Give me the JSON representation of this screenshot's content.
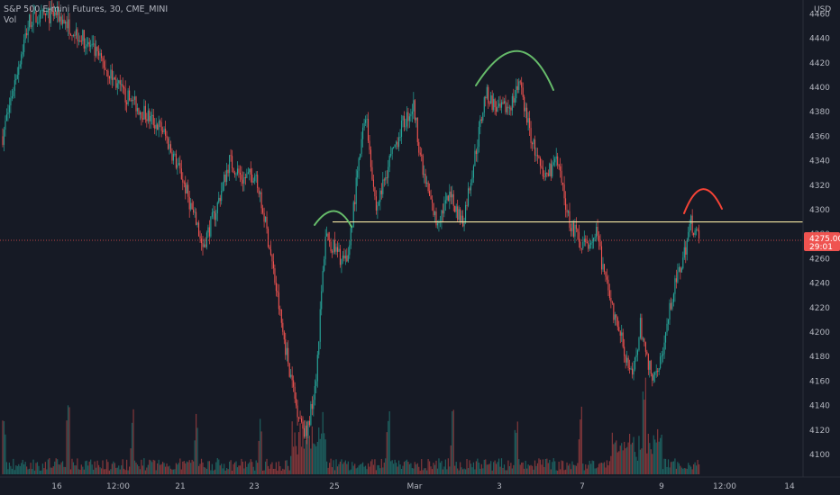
{
  "header": {
    "symbol_line": "S&P 500 E-mini Futures, 30, CME_MINI",
    "volume_label": "Vol"
  },
  "currency": "USD",
  "price_axis": {
    "ticks": [
      4100,
      4120,
      4140,
      4160,
      4180,
      4200,
      4220,
      4240,
      4260,
      4280,
      4300,
      4320,
      4340,
      4360,
      4380,
      4400,
      4420,
      4440,
      4460
    ],
    "last_price_label": "4275.00",
    "countdown_label": "29:01"
  },
  "time_axis": {
    "labels": [
      "16",
      "12:00",
      "21",
      "23",
      "25",
      "Mar",
      "3",
      "7",
      "9",
      "12:00",
      "14"
    ]
  },
  "colors": {
    "background": "#161a25",
    "up": "#26a69a",
    "down": "#ef5350",
    "resistance_line": "#f5e7a3",
    "green_arc": "#66bb6a",
    "red_arc": "#f44336",
    "last_price_line": "#ef5350"
  },
  "chart_data": {
    "type": "line",
    "title": "S&P 500 E-mini Futures, 30, CME_MINI",
    "interval": "30 minutes",
    "ylim": [
      4090,
      4470
    ],
    "ytick_step": 20,
    "x_labels": [
      "16",
      "12:00",
      "21",
      "23",
      "25",
      "Mar",
      "3",
      "7",
      "9",
      "12:00",
      "14"
    ],
    "price_path": [
      {
        "bar": 0,
        "close": 4360
      },
      {
        "bar": 10,
        "close": 4410
      },
      {
        "bar": 20,
        "close": 4455
      },
      {
        "bar": 40,
        "close": 4460
      },
      {
        "bar": 60,
        "close": 4440
      },
      {
        "bar": 75,
        "close": 4420
      },
      {
        "bar": 90,
        "close": 4395
      },
      {
        "bar": 105,
        "close": 4380
      },
      {
        "bar": 120,
        "close": 4365
      },
      {
        "bar": 135,
        "close": 4325
      },
      {
        "bar": 150,
        "close": 4270
      },
      {
        "bar": 160,
        "close": 4300
      },
      {
        "bar": 170,
        "close": 4340
      },
      {
        "bar": 180,
        "close": 4325
      },
      {
        "bar": 190,
        "close": 4330
      },
      {
        "bar": 200,
        "close": 4270
      },
      {
        "bar": 210,
        "close": 4200
      },
      {
        "bar": 220,
        "close": 4140
      },
      {
        "bar": 228,
        "close": 4115
      },
      {
        "bar": 235,
        "close": 4165
      },
      {
        "bar": 242,
        "close": 4280
      },
      {
        "bar": 250,
        "close": 4265
      },
      {
        "bar": 258,
        "close": 4255
      },
      {
        "bar": 265,
        "close": 4320
      },
      {
        "bar": 272,
        "close": 4380
      },
      {
        "bar": 280,
        "close": 4300
      },
      {
        "bar": 290,
        "close": 4340
      },
      {
        "bar": 300,
        "close": 4370
      },
      {
        "bar": 308,
        "close": 4385
      },
      {
        "bar": 315,
        "close": 4330
      },
      {
        "bar": 325,
        "close": 4290
      },
      {
        "bar": 335,
        "close": 4310
      },
      {
        "bar": 345,
        "close": 4290
      },
      {
        "bar": 355,
        "close": 4350
      },
      {
        "bar": 362,
        "close": 4395
      },
      {
        "bar": 372,
        "close": 4380
      },
      {
        "bar": 380,
        "close": 4385
      },
      {
        "bar": 388,
        "close": 4400
      },
      {
        "bar": 396,
        "close": 4360
      },
      {
        "bar": 405,
        "close": 4325
      },
      {
        "bar": 415,
        "close": 4340
      },
      {
        "bar": 425,
        "close": 4290
      },
      {
        "bar": 435,
        "close": 4270
      },
      {
        "bar": 445,
        "close": 4280
      },
      {
        "bar": 455,
        "close": 4225
      },
      {
        "bar": 465,
        "close": 4190
      },
      {
        "bar": 472,
        "close": 4160
      },
      {
        "bar": 478,
        "close": 4205
      },
      {
        "bar": 486,
        "close": 4165
      },
      {
        "bar": 494,
        "close": 4180
      },
      {
        "bar": 502,
        "close": 4230
      },
      {
        "bar": 510,
        "close": 4260
      },
      {
        "bar": 516,
        "close": 4290
      },
      {
        "bar": 522,
        "close": 4275
      }
    ],
    "last_price": 4275.0,
    "annotations": {
      "horizontal_line_price": 4290,
      "last_price_line": 4275
    },
    "grid": false,
    "legend": "none"
  }
}
